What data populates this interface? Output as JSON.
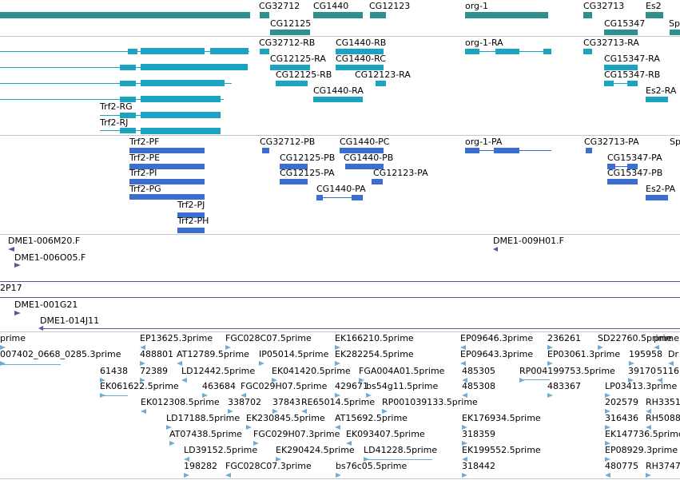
{
  "tracks": {
    "genes": {
      "labels": [
        "CG32712",
        "CG1440",
        "CG12123",
        "org-1",
        "CG32713",
        "Es2",
        "CG12125",
        "CG15347",
        "Sp"
      ],
      "color": "#2f8f8f"
    },
    "transcripts_r": {
      "labels": [
        "CG32712-RB",
        "CG1440-RB",
        "org-1-RA",
        "CG32713-RA",
        "CG12125-RA",
        "CG1440-RC",
        "CG15347-RA",
        "CG12125-RB",
        "CG12123-RA",
        "CG15347-RB",
        "CG1440-RA",
        "Es2-RA",
        "Trf2-RG",
        "Trf2-RJ"
      ],
      "color": "#1ba3c0"
    },
    "transcripts_p": {
      "labels": [
        "Trf2-PF",
        "CG32712-PB",
        "CG1440-PC",
        "org-1-PA",
        "CG32713-PA",
        "Sp",
        "Trf2-PE",
        "CG12125-PB",
        "CG1440-PB",
        "CG15347-PA",
        "Trf2-PI",
        "CG12125-PA",
        "CG12123-PA",
        "CG15347-PB",
        "Trf2-PG",
        "CG1440-PA",
        "Es2-PA",
        "Trf2-PJ",
        "Trf2-PH"
      ],
      "color": "#3a6fd0"
    },
    "clones": {
      "labels": [
        "DME1-006M20.F",
        "DME1-009H01.F",
        "DME1-006O05.F",
        "2P17",
        "DME1-001G21",
        "DME1-014J11"
      ],
      "color": "#6a4fa0"
    },
    "ests": {
      "labels": [
        "prime",
        "EP13625.3prime",
        "FGC028C07.5prime",
        "EK166210.5prime",
        "EP09646.3prime",
        "236261",
        "SD22760.5prime",
        "prime",
        "007402_0668_0285.3prime",
        "488801",
        "AT12789.5prime",
        "IP05014.5prime",
        "EK282254.5prime",
        "EP09643.3prime",
        "EP03061.3prime",
        "195958",
        "Dr",
        "61438",
        "72389",
        "LD12442.5prime",
        "EK041420.5prime",
        "FGA004A01.5prime",
        "485305",
        "RP004199753.5prime",
        "39170",
        "5116",
        "EK061622.5prime",
        "463684",
        "FGC029H07.5prime",
        "429671",
        "bs54g11.5prime",
        "485308",
        "483367",
        "LP03413.3prime",
        "EK012308.5prime",
        "338702",
        "37843",
        "RE65014.5prime",
        "RP001039133.5prime",
        "202579",
        "RH3351",
        "LD17188.5prime",
        "EK230845.5prime",
        "AT15692.5prime",
        "EK176934.5prime",
        "316436",
        "RH5088",
        "AT07438.5prime",
        "FGC029H07.3prime",
        "EK093407.5prime",
        "318359",
        "EK147736.5prime",
        "LD39152.5prime",
        "EK290424.5prime",
        "LD41228.5prime",
        "EK199552.5prime",
        "EP08929.3prime",
        "198282",
        "FGC028C07.3prime",
        "bs76c05.5prime",
        "318442",
        "480775",
        "RH3747"
      ],
      "color": "#6aaed6"
    }
  }
}
